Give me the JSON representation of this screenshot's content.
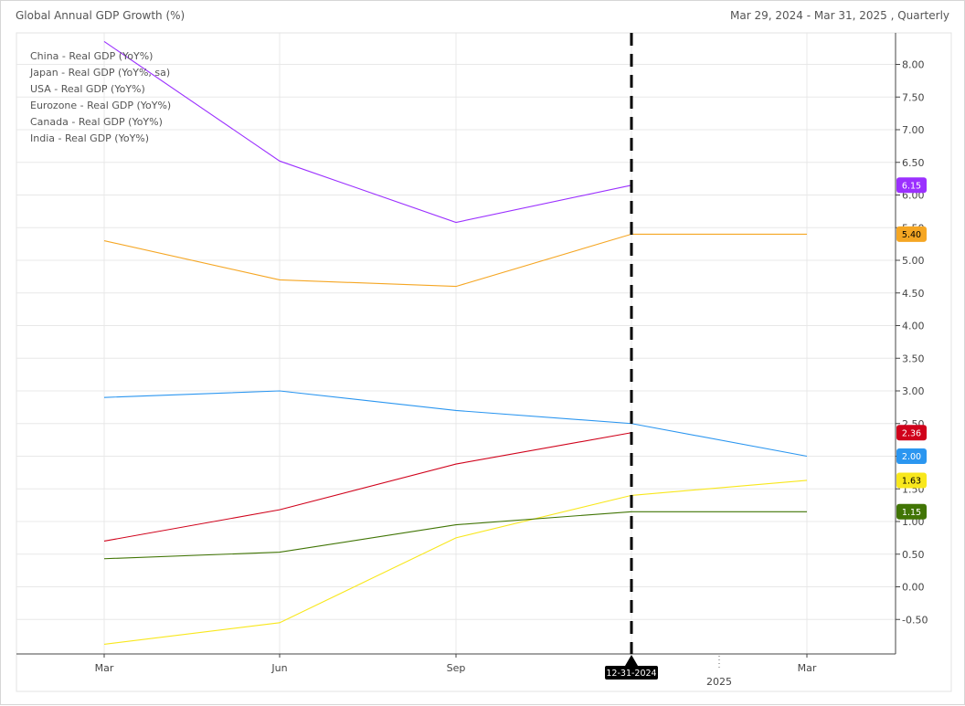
{
  "header": {
    "title": "Global Annual GDP Growth (%)",
    "range": "Mar 29, 2024 - Mar 31, 2025 , Quarterly"
  },
  "chart_data": {
    "type": "line",
    "categories": [
      "Mar",
      "Jun",
      "Sep",
      "Dec",
      "Mar"
    ],
    "x_tick_labels": [
      "Mar",
      "Jun",
      "Sep",
      "Mar"
    ],
    "year_label": "2025",
    "ylim": [
      -1.0,
      8.5
    ],
    "y_ticks": [
      8.0,
      7.5,
      7.0,
      6.5,
      6.0,
      5.5,
      5.0,
      4.5,
      4.0,
      3.5,
      3.0,
      2.5,
      2.0,
      1.5,
      1.0,
      0.5,
      0.0,
      -0.5
    ],
    "y_tick_labels": [
      "8.00",
      "7.50",
      "7.00",
      "6.50",
      "6.00",
      "5.50",
      "5.00",
      "4.50",
      "4.00",
      "3.50",
      "3.00",
      "2.50",
      "2.00",
      "1.50",
      "1.00",
      "0.50",
      "0.00",
      "-0.50"
    ],
    "grid": true,
    "legend_position": "top-left",
    "cursor": {
      "category_index": 3,
      "label": "12-31-2024"
    },
    "series": [
      {
        "name": "China - Real GDP (YoY%)",
        "color": "#9b30ff",
        "values": [
          8.35,
          6.52,
          5.58,
          6.15,
          null
        ],
        "last_label": "6.15"
      },
      {
        "name": "Japan - Real GDP (YoY%, sa)",
        "color": "#f5a623",
        "values": [
          5.3,
          4.7,
          4.6,
          5.4,
          5.4
        ],
        "last_label": "5.40"
      },
      {
        "name": "USA - Real GDP (YoY%)",
        "color": "#2b96f0",
        "values": [
          2.9,
          3.0,
          2.7,
          2.5,
          2.0
        ],
        "last_label": "2.00"
      },
      {
        "name": "Eurozone - Real GDP (YoY%)",
        "color": "#d0021b",
        "values": [
          0.7,
          1.18,
          1.88,
          2.36,
          null
        ],
        "last_label": "2.36"
      },
      {
        "name": "Canada - Real GDP (YoY%)",
        "color": "#f8e71c",
        "values": [
          -0.88,
          -0.55,
          0.75,
          1.4,
          1.63
        ],
        "last_label": "1.63"
      },
      {
        "name": "India - Real GDP (YoY%)",
        "color": "#417505",
        "values": [
          0.43,
          0.53,
          0.95,
          1.15,
          1.15
        ],
        "last_label": "1.15"
      }
    ]
  }
}
